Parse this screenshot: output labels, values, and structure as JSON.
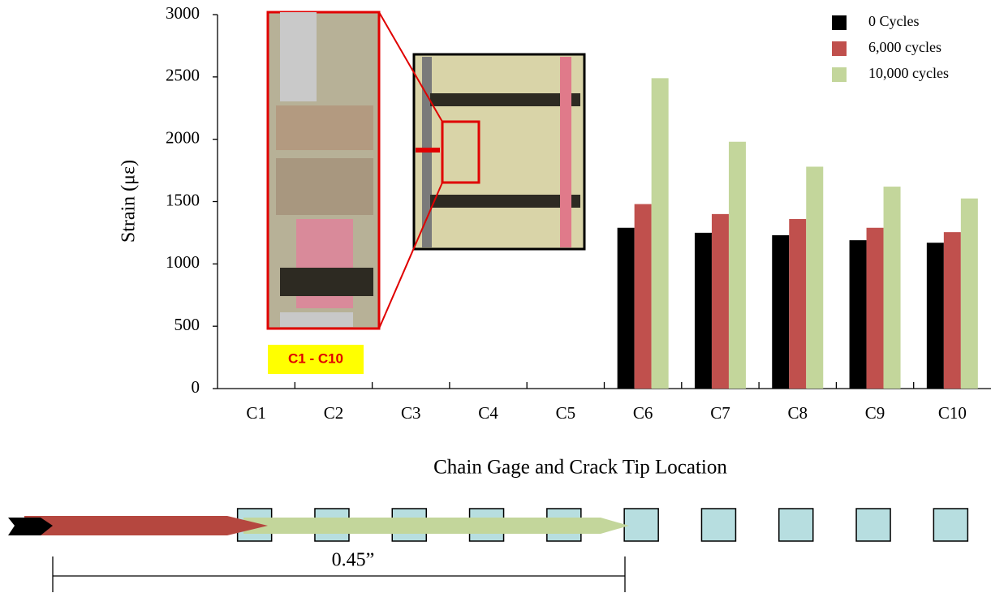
{
  "chart_data": {
    "type": "bar",
    "categories": [
      "C1",
      "C2",
      "C3",
      "C4",
      "C5",
      "C6",
      "C7",
      "C8",
      "C9",
      "C10"
    ],
    "series": [
      {
        "name": "0 Cycles",
        "color": "#000000",
        "values": [
          null,
          null,
          null,
          null,
          null,
          1290,
          1250,
          1230,
          1190,
          1170
        ]
      },
      {
        "name": "6,000 cycles",
        "color": "#c0504d",
        "values": [
          null,
          null,
          null,
          null,
          null,
          1480,
          1400,
          1360,
          1290,
          1255
        ]
      },
      {
        "name": "10,000 cycles",
        "color": "#c3d69b",
        "values": [
          null,
          null,
          null,
          null,
          null,
          2490,
          1980,
          1780,
          1620,
          1525
        ]
      }
    ],
    "ylim": [
      0,
      3000
    ],
    "yticks": [
      0,
      500,
      1000,
      1500,
      2000,
      2500,
      3000
    ],
    "x_label": "Chain Gage and Crack Tip Location",
    "y_label": "Strain (με)",
    "legend": "top-right",
    "annotations": [
      "C1 - C10",
      "0.45”"
    ]
  }
}
